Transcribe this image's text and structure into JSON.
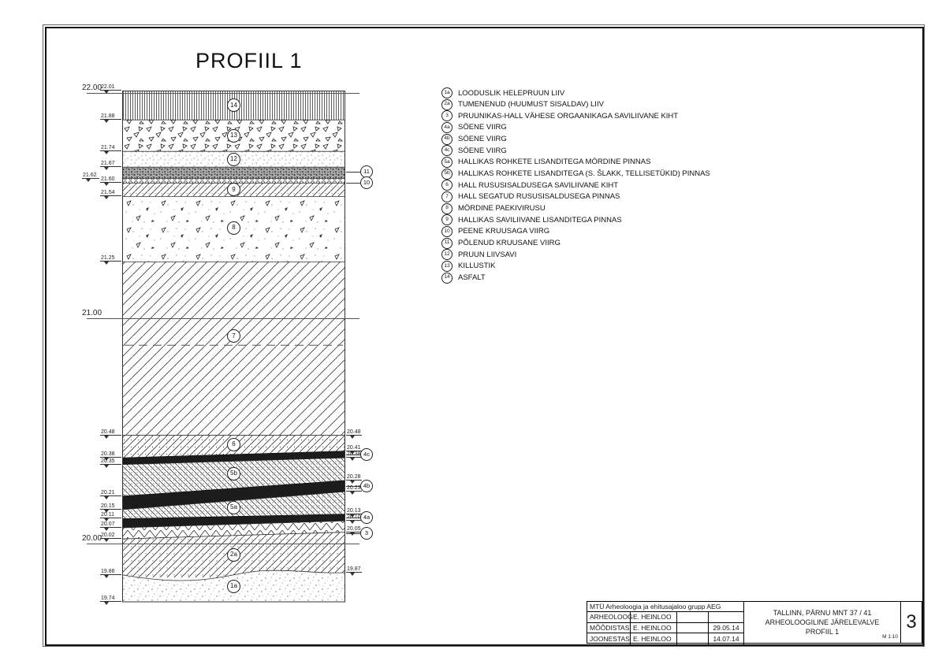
{
  "sheet": {
    "title": "PROFIIL 1",
    "sheet_number": "3",
    "scale_label": "M 1:10"
  },
  "legend": {
    "items": [
      {
        "num": "1a",
        "text": "LOODUSLIK HELEPRUUN LIIV"
      },
      {
        "num": "2a",
        "text": "TUMENENUD (HUUMUST SISALDAV) LIIV"
      },
      {
        "num": "3",
        "text": "PRUUNIKAS-HALL VÄHESE ORGAANIKAGA SAVILIIVANE KIHT"
      },
      {
        "num": "4a",
        "text": "SÖENE VIIRG"
      },
      {
        "num": "4b",
        "text": "SÖENE VIIRG"
      },
      {
        "num": "4c",
        "text": "SÖENE VIIRG"
      },
      {
        "num": "5a",
        "text": "HALLIKAS ROHKETE LISANDITEGA MÖRDINE PINNAS"
      },
      {
        "num": "5b",
        "text": "HALLIKAS ROHKETE LISANDITEGA (S. ŠLAKK, TELLISETÜKID) PINNAS"
      },
      {
        "num": "6",
        "text": "HALL RUSUSISALDUSEGA SAVILIIVANE KIHT"
      },
      {
        "num": "7",
        "text": "HALL SEGATUD RUSUSISALDUSEGA PINNAS"
      },
      {
        "num": "8",
        "text": "MÖRDINE PAEKIVIRUSU"
      },
      {
        "num": "9",
        "text": "HALLIKAS SAVILIIVANE LISANDITEGA PINNAS"
      },
      {
        "num": "10",
        "text": "PEENE KRUUSAGA VIIRG"
      },
      {
        "num": "11",
        "text": "PÕLENUD KRUUSANE VIIRG"
      },
      {
        "num": "12",
        "text": "PRUUN LIIVSAVI"
      },
      {
        "num": "13",
        "text": "KILLUSTIK"
      },
      {
        "num": "14",
        "text": "ASFALT"
      }
    ]
  },
  "profile": {
    "gridlines": [
      {
        "label": "22.00",
        "elev": 22.0
      },
      {
        "label": "21.00",
        "elev": 21.0
      },
      {
        "label": "20.00",
        "elev": 20.0
      }
    ],
    "marks_left": [
      {
        "label": "22.01",
        "elev": 22.01
      },
      {
        "label": "21.88",
        "elev": 21.88
      },
      {
        "label": "21.74",
        "elev": 21.74
      },
      {
        "label": "21.67",
        "elev": 21.67
      },
      {
        "label": "21.62",
        "elev": 21.62,
        "variant": "outer"
      },
      {
        "label": "21.60",
        "elev": 21.6
      },
      {
        "label": "21.54",
        "elev": 21.54
      },
      {
        "label": "21.25",
        "elev": 21.25
      },
      {
        "label": "20.48",
        "elev": 20.48
      },
      {
        "label": "20.38",
        "elev": 20.38
      },
      {
        "label": "20.35",
        "elev": 20.35
      },
      {
        "label": "20.21",
        "elev": 20.21
      },
      {
        "label": "20.15",
        "elev": 20.15
      },
      {
        "label": "20.11",
        "elev": 20.11
      },
      {
        "label": "20.07",
        "elev": 20.07
      },
      {
        "label": "20.02",
        "elev": 20.02
      },
      {
        "label": "19.86",
        "elev": 19.86
      },
      {
        "label": "19.74",
        "elev": 19.74
      }
    ],
    "marks_right": [
      {
        "label": "20.48",
        "elev": 20.48
      },
      {
        "label": "20.41",
        "elev": 20.41
      },
      {
        "label": "20.38",
        "elev": 20.38
      },
      {
        "label": "20.28",
        "elev": 20.28
      },
      {
        "label": "20.23",
        "elev": 20.23
      },
      {
        "label": "20.13",
        "elev": 20.13
      },
      {
        "label": "20.10",
        "elev": 20.1
      },
      {
        "label": "20.05",
        "elev": 20.05
      },
      {
        "label": "19.87",
        "elev": 19.87
      }
    ],
    "badges_inside": [
      {
        "label": "14",
        "elev": 21.945
      },
      {
        "label": "13",
        "elev": 21.81
      },
      {
        "label": "12",
        "elev": 21.705
      },
      {
        "label": "9",
        "elev": 21.57
      },
      {
        "label": "8",
        "elev": 21.4
      },
      {
        "label": "7",
        "elev": 20.92
      },
      {
        "label": "6",
        "elev": 20.44
      },
      {
        "label": "5b",
        "elev": 20.31
      },
      {
        "label": "5a",
        "elev": 20.16
      },
      {
        "label": "2a",
        "elev": 19.95
      },
      {
        "label": "1a",
        "elev": 19.81
      }
    ],
    "badges_right": [
      {
        "label": "11",
        "elev": 21.65
      },
      {
        "label": "10",
        "elev": 21.6
      },
      {
        "label": "4c",
        "elev": 20.395
      },
      {
        "label": "4b",
        "elev": 20.255
      },
      {
        "label": "4a",
        "elev": 20.115
      },
      {
        "label": "3",
        "elev": 20.045
      }
    ]
  },
  "title_block": {
    "company": "MTÜ Arheoloogia ja ehitusajaloo grupp AEG",
    "rows": [
      {
        "role": "ARHEOLOOG",
        "name": "E. HEINLOO",
        "extra": "",
        "date": ""
      },
      {
        "role": "MÕÕDISTAS",
        "name": "E. HEINLOO",
        "extra": "",
        "date": "29.05.14"
      },
      {
        "role": "JOONESTAS",
        "name": "E. HEINLOO",
        "extra": "",
        "date": "14.07.14"
      }
    ],
    "project_lines": [
      "TALLINN, PÄRNU MNT 37 / 41",
      "ARHEOLOOGILINE JÄRELEVALVE",
      "PROFIIL 1"
    ]
  }
}
